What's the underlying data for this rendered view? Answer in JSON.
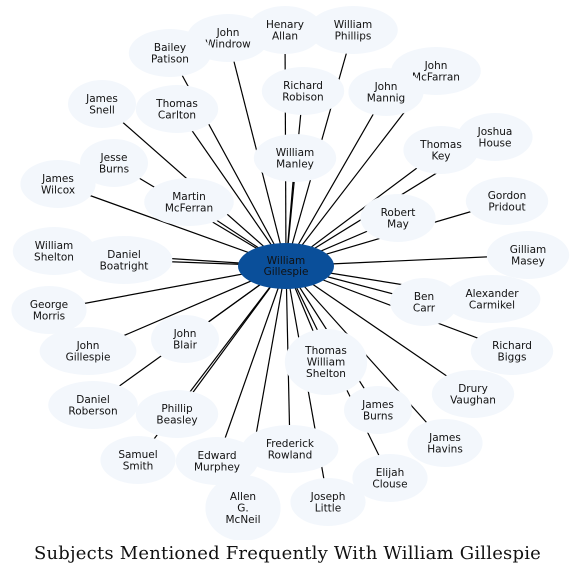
{
  "caption": "Subjects Mentioned Frequently With William Gillespie",
  "colors": {
    "hub": "#0a4f9a",
    "leaf": "#f3f7fc",
    "edge": "#000000"
  },
  "hub": {
    "lines": [
      "William",
      "Gillespie"
    ]
  },
  "nodes": [
    {
      "id": "henary-allan",
      "lines": [
        "Henary",
        "Allan"
      ]
    },
    {
      "id": "william-phillips",
      "lines": [
        "William",
        "Phillips"
      ]
    },
    {
      "id": "john-windrow",
      "lines": [
        "John",
        "Windrow"
      ]
    },
    {
      "id": "bailey-patison",
      "lines": [
        "Bailey",
        "Patison"
      ]
    },
    {
      "id": "john-mcfarran",
      "lines": [
        "John",
        "McFarran"
      ]
    },
    {
      "id": "richard-robison",
      "lines": [
        "Richard",
        "Robison"
      ]
    },
    {
      "id": "john-mannig",
      "lines": [
        "John",
        "Mannig"
      ]
    },
    {
      "id": "james-snell",
      "lines": [
        "James",
        "Snell"
      ]
    },
    {
      "id": "thomas-carlton",
      "lines": [
        "Thomas",
        "Carlton"
      ]
    },
    {
      "id": "joshua-house",
      "lines": [
        "Joshua",
        "House"
      ]
    },
    {
      "id": "thomas-key",
      "lines": [
        "Thomas",
        "Key"
      ]
    },
    {
      "id": "william-manley",
      "lines": [
        "William",
        "Manley"
      ]
    },
    {
      "id": "jesse-burns",
      "lines": [
        "Jesse",
        "Burns"
      ]
    },
    {
      "id": "james-wilcox",
      "lines": [
        "James",
        "Wilcox"
      ]
    },
    {
      "id": "martin-mcferran",
      "lines": [
        "Martin",
        "McFerran"
      ]
    },
    {
      "id": "gordon-pridout",
      "lines": [
        "Gordon",
        "Pridout"
      ]
    },
    {
      "id": "robert-may",
      "lines": [
        "Robert",
        "May"
      ]
    },
    {
      "id": "william-shelton",
      "lines": [
        "William",
        "Shelton"
      ]
    },
    {
      "id": "daniel-boatright",
      "lines": [
        "Daniel",
        "Boatright"
      ]
    },
    {
      "id": "gilliam-masey",
      "lines": [
        "Gilliam",
        "Masey"
      ]
    },
    {
      "id": "george-morris",
      "lines": [
        "George",
        "Morris"
      ]
    },
    {
      "id": "ben-carr",
      "lines": [
        "Ben",
        "Carr"
      ]
    },
    {
      "id": "alexander-carmikel",
      "lines": [
        "Alexander",
        "Carmikel"
      ]
    },
    {
      "id": "john-blair",
      "lines": [
        "John",
        "Blair"
      ]
    },
    {
      "id": "john-gillespie",
      "lines": [
        "John",
        "Gillespie"
      ]
    },
    {
      "id": "richard-biggs",
      "lines": [
        "Richard",
        "Biggs"
      ]
    },
    {
      "id": "thomas-william-shelton",
      "lines": [
        "Thomas",
        "William",
        "Shelton"
      ]
    },
    {
      "id": "drury-vaughan",
      "lines": [
        "Drury",
        "Vaughan"
      ]
    },
    {
      "id": "daniel-roberson",
      "lines": [
        "Daniel",
        "Roberson"
      ]
    },
    {
      "id": "phillip-beasley",
      "lines": [
        "Phillip",
        "Beasley"
      ]
    },
    {
      "id": "james-burns",
      "lines": [
        "James",
        "Burns"
      ]
    },
    {
      "id": "james-havins",
      "lines": [
        "James",
        "Havins"
      ]
    },
    {
      "id": "frederick-rowland",
      "lines": [
        "Frederick",
        "Rowland"
      ]
    },
    {
      "id": "samuel-smith",
      "lines": [
        "Samuel",
        "Smith"
      ]
    },
    {
      "id": "edward-murphey",
      "lines": [
        "Edward",
        "Murphey"
      ]
    },
    {
      "id": "elijah-clouse",
      "lines": [
        "Elijah",
        "Clouse"
      ]
    },
    {
      "id": "allen-g-mcneil",
      "lines": [
        "Allen",
        "G.",
        "McNeil"
      ]
    },
    {
      "id": "joseph-little",
      "lines": [
        "Joseph",
        "Little"
      ]
    }
  ]
}
